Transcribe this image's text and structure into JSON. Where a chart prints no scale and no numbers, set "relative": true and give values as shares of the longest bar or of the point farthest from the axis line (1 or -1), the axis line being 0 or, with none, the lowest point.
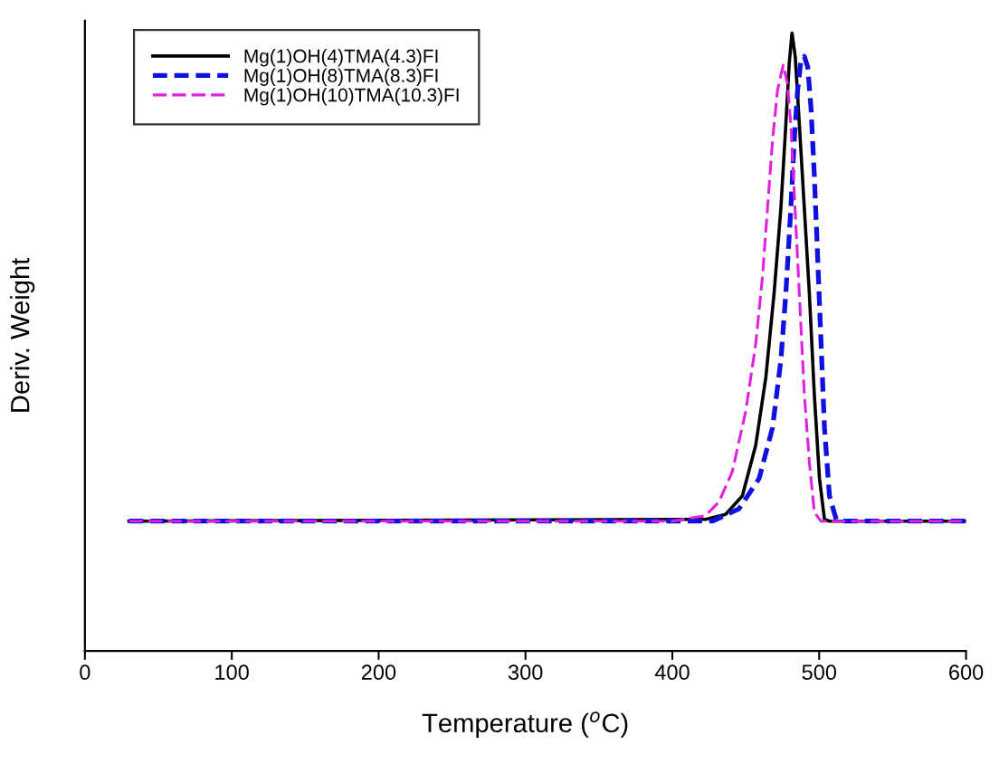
{
  "chart_data": {
    "type": "line",
    "relative": true,
    "xlabel": "Temperature ($^{o}$C)",
    "ylabel": "Deriv. Weight",
    "xlim": [
      0,
      600
    ],
    "xticks": [
      0,
      100,
      200,
      300,
      400,
      500,
      600
    ],
    "legend": "top left",
    "grid": false,
    "marker": "none",
    "series": [
      {
        "name": "Mg(1)OH(4)TMA(4.3)FI",
        "color": "#000000",
        "line_style": "solid",
        "x": [
          30,
          422.6,
          436.3,
          447.7,
          456.8,
          463.7,
          469.3,
          473.9,
          477.3,
          479.6,
          481.5,
          483.7,
          486.5,
          489.9,
          493.3,
          496.7,
          500.2,
          503.6,
          507,
          600
        ],
        "values": [
          0.21,
          0.213,
          0.221,
          0.251,
          0.333,
          0.443,
          0.579,
          0.716,
          0.852,
          0.951,
          1.0,
          0.962,
          0.852,
          0.716,
          0.579,
          0.415,
          0.279,
          0.213,
          0.21,
          0.21
        ]
      },
      {
        "name": "Mg(1)OH(8)TMA(8.3)FI",
        "color": "#1010e0",
        "line_style": "dashed",
        "x": [
          30,
          400,
          427.2,
          445.4,
          459.1,
          468.2,
          473.9,
          477.3,
          480.7,
          483.0,
          485.3,
          487.6,
          489.9,
          492.2,
          494.4,
          496.7,
          499.0,
          501.3,
          503.6,
          507.0,
          511.6,
          516.1,
          600
        ],
        "values": [
          0.21,
          0.21,
          0.21,
          0.23,
          0.279,
          0.361,
          0.47,
          0.579,
          0.716,
          0.825,
          0.907,
          0.956,
          0.962,
          0.945,
          0.88,
          0.77,
          0.634,
          0.497,
          0.361,
          0.251,
          0.213,
          0.21,
          0.21
        ]
      },
      {
        "name": "Mg(1)OH(10)TMA(10.3)FI",
        "color": "#e020e0",
        "line_style": "dashed",
        "x": [
          30,
          400,
          422.6,
          431.7,
          440.8,
          450.0,
          456.8,
          461.4,
          464.8,
          468.2,
          471.6,
          475.5,
          478.4,
          480.7,
          483.0,
          485.3,
          487.6,
          489.9,
          493.3,
          496.7,
          501.3,
          600
        ],
        "values": [
          0.21,
          0.21,
          0.219,
          0.241,
          0.29,
          0.388,
          0.497,
          0.606,
          0.716,
          0.825,
          0.907,
          0.948,
          0.918,
          0.852,
          0.743,
          0.634,
          0.525,
          0.415,
          0.306,
          0.224,
          0.21,
          0.21
        ]
      }
    ]
  }
}
